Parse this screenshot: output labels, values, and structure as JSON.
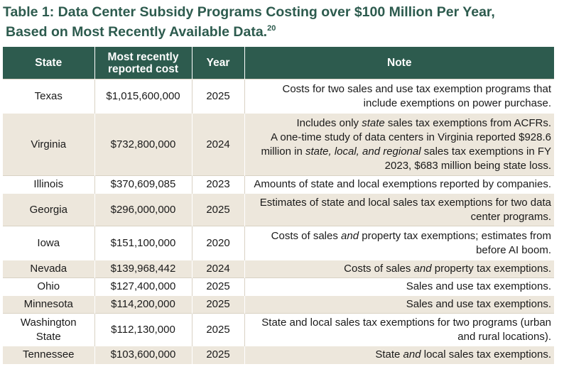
{
  "title": {
    "line1": "Table 1: Data Center Subsidy Programs Costing over $100 Million Per Year,",
    "line2": "Based on Most Recently Available Data.",
    "footnote": "20"
  },
  "table": {
    "headers": {
      "state": "State",
      "cost_line1": "Most recently",
      "cost_line2": "reported cost",
      "year": "Year",
      "note": "Note"
    },
    "rows": [
      {
        "state": "Texas",
        "cost": "$1,015,600,000",
        "year": "2025",
        "note_line1": "Costs for two sales and use tax exemption programs that",
        "note_line2": "include exemptions on power purchase."
      },
      {
        "state": "Virginia",
        "cost": "$732,800,000",
        "year": "2024",
        "note_l1_a": "Includes only ",
        "note_l1_em": "state",
        "note_l1_b": " sales tax exemptions from ACFRs.",
        "note_line2": "A one-time study of data centers in Virginia reported $928.6",
        "note_l3_a": "million in ",
        "note_l3_em": "state, local, and regional",
        "note_l3_b": " sales tax exemptions in FY",
        "note_line4": "2023, $683 million being state loss."
      },
      {
        "state": "Illinois",
        "cost": "$370,609,085",
        "year": "2023",
        "note": "Amounts of state and local exemptions reported by companies."
      },
      {
        "state": "Georgia",
        "cost": "$296,000,000",
        "year": "2025",
        "note_line1": "Estimates of state and local sales tax exemptions for two data",
        "note_line2": "center programs."
      },
      {
        "state": "Iowa",
        "cost": "$151,100,000",
        "year": "2020",
        "note_l1_a": "Costs of sales ",
        "note_l1_em": "and",
        "note_l1_b": " property tax exemptions; estimates from",
        "note_line2": "before AI boom."
      },
      {
        "state": "Nevada",
        "cost": "$139,968,442",
        "year": "2024",
        "note_a": "Costs of sales ",
        "note_em": "and",
        "note_b": " property tax exemptions."
      },
      {
        "state": "Ohio",
        "cost": "$127,400,000",
        "year": "2025",
        "note": "Sales and use tax exemptions."
      },
      {
        "state": "Minnesota",
        "cost": "$114,200,000",
        "year": "2025",
        "note": "Sales and use tax exemptions."
      },
      {
        "state_line1": "Washington",
        "state_line2": "State",
        "cost": "$112,130,000",
        "year": "2025",
        "note_line1": "State and local sales tax exemptions for two programs (urban",
        "note_line2": "and rural locations)."
      },
      {
        "state": "Tennessee",
        "cost": "$103,600,000",
        "year": "2025",
        "note_a": "State ",
        "note_em": "and",
        "note_b": " local sales tax exemptions."
      }
    ]
  }
}
